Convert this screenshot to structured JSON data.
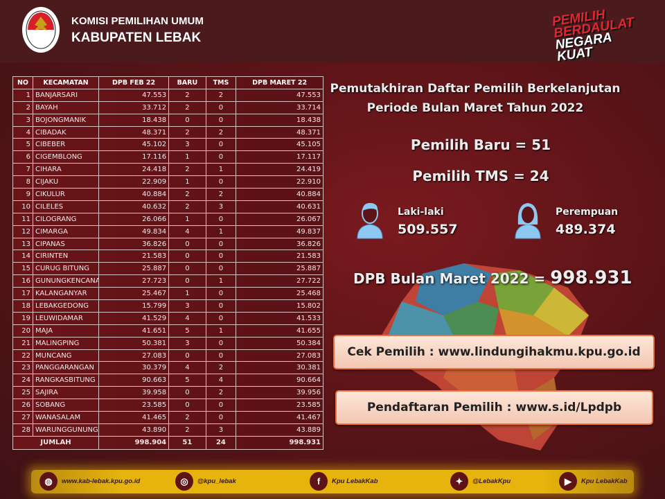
{
  "header": {
    "org_line1": "KOMISI PEMILIHAN UMUM",
    "org_line2": "KABUPATEN LEBAK",
    "logo_text": "KOMISI PEMILIHAN UMUM",
    "slogan": [
      "PEMILIH",
      "BERDAULAT",
      "NEGARA",
      "KUAT"
    ]
  },
  "table": {
    "columns": [
      "NO",
      "KECAMATAN",
      "DPB FEB 22",
      "BARU",
      "TMS",
      "DPB MARET 22"
    ],
    "rows": [
      [
        "1",
        "BANJARSARI",
        "47.553",
        "2",
        "2",
        "47.553"
      ],
      [
        "2",
        "BAYAH",
        "33.712",
        "2",
        "0",
        "33.714"
      ],
      [
        "3",
        "BOJONGMANIK",
        "18.438",
        "0",
        "0",
        "18.438"
      ],
      [
        "4",
        "CIBADAK",
        "48.371",
        "2",
        "2",
        "48.371"
      ],
      [
        "5",
        "CIBEBER",
        "45.102",
        "3",
        "0",
        "45.105"
      ],
      [
        "6",
        "CIGEMBLONG",
        "17.116",
        "1",
        "0",
        "17.117"
      ],
      [
        "7",
        "CIHARA",
        "24.418",
        "2",
        "1",
        "24.419"
      ],
      [
        "8",
        "CIJAKU",
        "22.909",
        "1",
        "0",
        "22.910"
      ],
      [
        "9",
        "CIKULUR",
        "40.884",
        "2",
        "2",
        "40.884"
      ],
      [
        "10",
        "CILELES",
        "40.632",
        "2",
        "3",
        "40.631"
      ],
      [
        "11",
        "CILOGRANG",
        "26.066",
        "1",
        "0",
        "26.067"
      ],
      [
        "12",
        "CIMARGA",
        "49.834",
        "4",
        "1",
        "49.837"
      ],
      [
        "13",
        "CIPANAS",
        "36.826",
        "0",
        "0",
        "36.826"
      ],
      [
        "14",
        "CIRINTEN",
        "21.583",
        "0",
        "0",
        "21.583"
      ],
      [
        "15",
        "CURUG BITUNG",
        "25.887",
        "0",
        "0",
        "25.887"
      ],
      [
        "16",
        "GUNUNGKENCANA",
        "27.723",
        "0",
        "1",
        "27.722"
      ],
      [
        "17",
        "KALANGANYAR",
        "25.467",
        "1",
        "0",
        "25.468"
      ],
      [
        "18",
        "LEBAKGEDONG",
        "15.799",
        "3",
        "0",
        "15.802"
      ],
      [
        "19",
        "LEUWIDAMAR",
        "41.529",
        "4",
        "0",
        "41.533"
      ],
      [
        "20",
        "MAJA",
        "41.651",
        "5",
        "1",
        "41.655"
      ],
      [
        "21",
        "MALINGPING",
        "50.381",
        "3",
        "0",
        "50.384"
      ],
      [
        "22",
        "MUNCANG",
        "27.083",
        "0",
        "0",
        "27.083"
      ],
      [
        "23",
        "PANGGARANGAN",
        "30.379",
        "4",
        "2",
        "30.381"
      ],
      [
        "24",
        "RANGKASBITUNG",
        "90.663",
        "5",
        "4",
        "90.664"
      ],
      [
        "25",
        "SAJIRA",
        "39.958",
        "0",
        "2",
        "39.956"
      ],
      [
        "26",
        "SOBANG",
        "23.585",
        "0",
        "0",
        "23.585"
      ],
      [
        "27",
        "WANASALAM",
        "41.465",
        "2",
        "0",
        "41.467"
      ],
      [
        "28",
        "WARUNGGUNUNG",
        "43.890",
        "2",
        "3",
        "43.889"
      ]
    ],
    "total": {
      "label": "JUMLAH",
      "feb": "998.904",
      "baru": "51",
      "tms": "24",
      "maret": "998.931"
    }
  },
  "summary": {
    "title_line1": "Pemutakhiran Daftar Pemilih Berkelanjutan",
    "title_line2": "Periode Bulan Maret Tahun 2022",
    "pemilih_baru": "Pemilih Baru = 51",
    "pemilih_tms": "Pemilih TMS = 24",
    "male_label": "Laki-laki",
    "male_value": "509.557",
    "female_label": "Perempuan",
    "female_value": "489.374",
    "dpb_label": "DPB Bulan Maret 2022 = ",
    "dpb_value": "998.931"
  },
  "links": {
    "cek": "Cek Pemilih : www.lindungihakmu.kpu.go.id",
    "daftar": "Pendaftaran Pemilih : www.s.id/Lpdpb"
  },
  "footer": [
    {
      "icon": "globe-icon",
      "text": "www.kab-lebak.kpu.go.id"
    },
    {
      "icon": "instagram-icon",
      "text": "@kpu_lebak"
    },
    {
      "icon": "facebook-icon",
      "text": "Kpu LebakKab"
    },
    {
      "icon": "twitter-icon",
      "text": "@LebakKpu"
    },
    {
      "icon": "youtube-icon",
      "text": "Kpu LebakKab"
    }
  ],
  "colors": {
    "background": "#5c1418",
    "accent": "#e8733f",
    "footer": "#e6b40c",
    "icon_blue": "#8cc8f0"
  }
}
